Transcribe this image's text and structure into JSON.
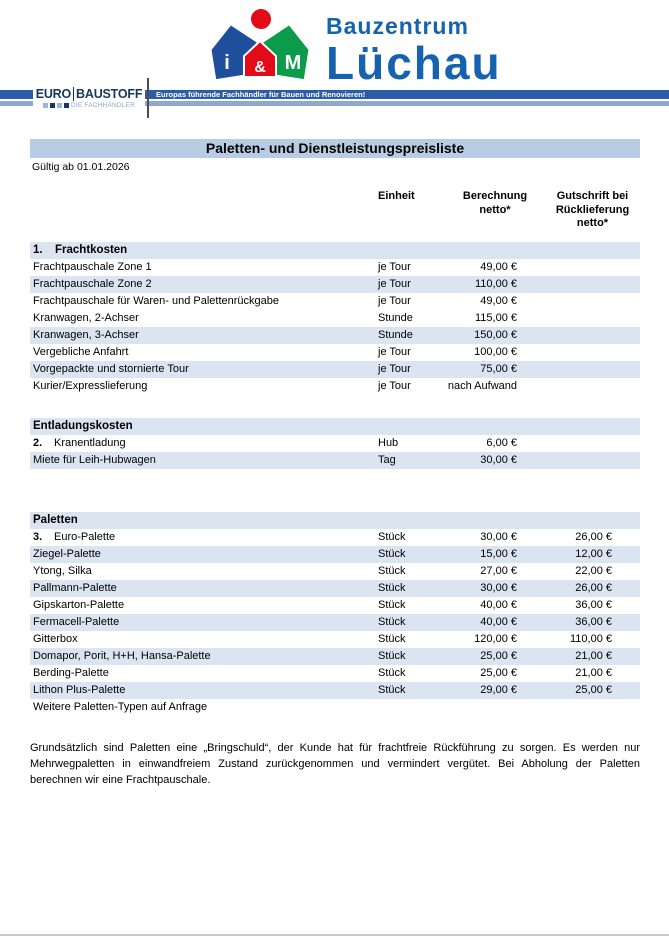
{
  "colors": {
    "accent_blue": "#1563af",
    "band_dark": "#2a5ca8",
    "band_light": "#8fa9cc",
    "title_bar": "#b8cce4",
    "row_stripe": "#dbe5f1",
    "logo_house_blue": "#1e4e9c",
    "logo_green": "#0a9b4b",
    "logo_red": "#e30b17"
  },
  "brand": {
    "line1": "Bauzentrum",
    "line2": "Lüchau",
    "logo_letters": [
      "i",
      "&",
      "M"
    ]
  },
  "eurobaustoff": {
    "word1": "EURO",
    "word2": "BAUSTOFF",
    "subtitle": "DIE FACHHÄNDLER",
    "banner_text": "Europas führende Fachhändler für Bauen und Renovieren!"
  },
  "document": {
    "title": "Paletten- und Dienstleistungspreisliste",
    "valid_from": "Gültig ab 01.01.2026",
    "footer_note": "Grundsätzlich sind Paletten eine „Bringschuld“, der Kunde hat für frachtfreie Rückführung zu sorgen. Es werden nur Mehrwegpaletten in einwandfreiem Zustand zurückgenommen und vermindert vergütet. Bei Abholung der Paletten berechnen wir eine Frachtpauschale."
  },
  "table": {
    "columns": {
      "unit": "Einheit",
      "charge": "Berechnung\nnetto*",
      "credit": "Gutschrift bei\nRücklieferung\nnetto*"
    }
  },
  "sections": [
    {
      "header_number": "1.",
      "title": "Frachtkosten",
      "rows": [
        {
          "label": "Frachtpauschale Zone 1",
          "unit": "je Tour",
          "charge": "49,00 €",
          "credit": "",
          "shaded": false
        },
        {
          "label": "Frachtpauschale Zone 2",
          "unit": "je Tour",
          "charge": "110,00 €",
          "credit": "",
          "shaded": true
        },
        {
          "label": "Frachtpauschale für Waren- und Palettenrückgabe",
          "unit": "je Tour",
          "charge": "49,00 €",
          "credit": "",
          "shaded": false
        },
        {
          "label": "Kranwagen, 2-Achser",
          "unit": "Stunde",
          "charge": "115,00 €",
          "credit": "",
          "shaded": false
        },
        {
          "label": "Kranwagen, 3-Achser",
          "unit": "Stunde",
          "charge": "150,00 €",
          "credit": "",
          "shaded": true
        },
        {
          "label": "Vergebliche Anfahrt",
          "unit": "je Tour",
          "charge": "100,00 €",
          "credit": "",
          "shaded": false
        },
        {
          "label": "Vorgepackte und stornierte Tour",
          "unit": "je Tour",
          "charge": "75,00 €",
          "credit": "",
          "shaded": true
        },
        {
          "label": "Kurier/Expresslieferung",
          "unit": "je Tour",
          "charge": "nach Aufwand",
          "credit": "",
          "shaded": false
        }
      ]
    },
    {
      "header_number": "",
      "title": "Entladungskosten",
      "rows": [
        {
          "number": "2.",
          "label": "Kranentladung",
          "unit": "Hub",
          "charge": "6,00 €",
          "credit": "",
          "shaded": false
        },
        {
          "label": "Miete für Leih-Hubwagen",
          "unit": "Tag",
          "charge": "30,00 €",
          "credit": "",
          "shaded": true
        }
      ]
    },
    {
      "header_number": "",
      "title": "Paletten",
      "rows": [
        {
          "number": "3.",
          "label": "Euro-Palette",
          "unit": "Stück",
          "charge": "30,00 €",
          "credit": "26,00 €",
          "shaded": false
        },
        {
          "label": "Ziegel-Palette",
          "unit": "Stück",
          "charge": "15,00 €",
          "credit": "12,00 €",
          "shaded": true
        },
        {
          "label": "Ytong, Silka",
          "unit": "Stück",
          "charge": "27,00 €",
          "credit": "22,00 €",
          "shaded": false
        },
        {
          "label": "Pallmann-Palette",
          "unit": "Stück",
          "charge": "30,00 €",
          "credit": "26,00 €",
          "shaded": true
        },
        {
          "label": "Gipskarton-Palette",
          "unit": "Stück",
          "charge": "40,00 €",
          "credit": "36,00 €",
          "shaded": false
        },
        {
          "label": "Fermacell-Palette",
          "unit": "Stück",
          "charge": "40,00 €",
          "credit": "36,00 €",
          "shaded": true
        },
        {
          "label": "Gitterbox",
          "unit": "Stück",
          "charge": "120,00 €",
          "credit": "110,00 €",
          "shaded": false
        },
        {
          "label": "Domapor, Porit, H+H, Hansa-Palette",
          "unit": "Stück",
          "charge": "25,00 €",
          "credit": "21,00 €",
          "shaded": true
        },
        {
          "label": "Berding-Palette",
          "unit": "Stück",
          "charge": "25,00 €",
          "credit": "21,00 €",
          "shaded": false
        },
        {
          "label": "Lithon Plus-Palette",
          "unit": "Stück",
          "charge": "29,00 €",
          "credit": "25,00 €",
          "shaded": true
        },
        {
          "label": "Weitere Paletten-Typen auf Anfrage",
          "unit": "",
          "charge": "",
          "credit": "",
          "shaded": false
        }
      ]
    }
  ]
}
